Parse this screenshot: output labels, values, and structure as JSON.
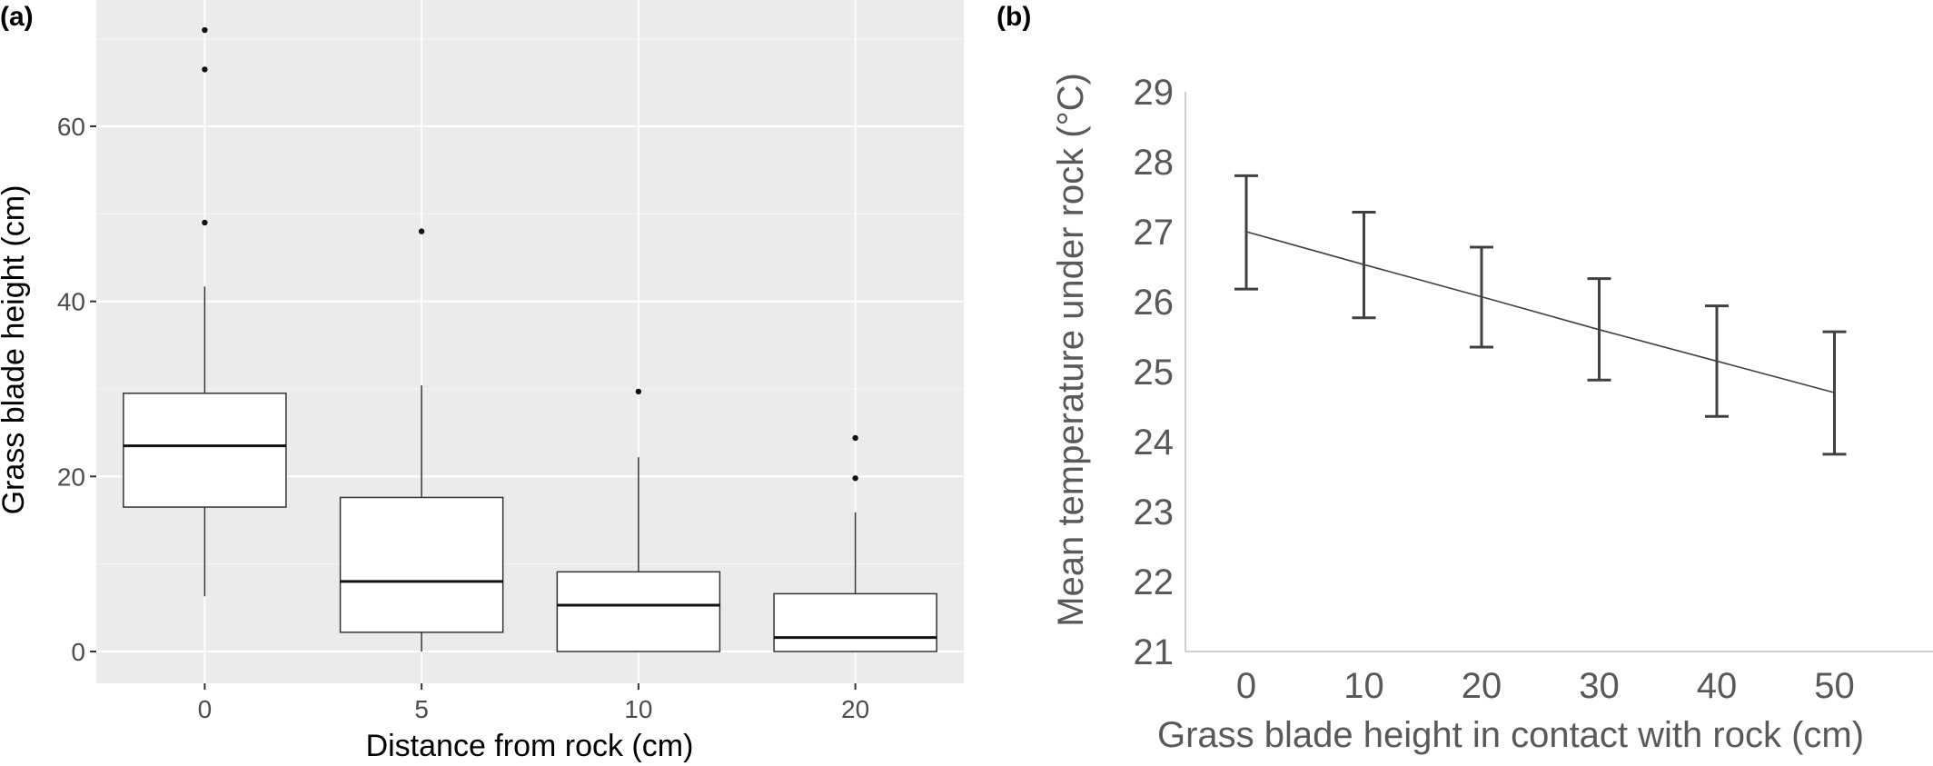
{
  "chart_data": [
    {
      "panel": "(a)",
      "type": "box",
      "xlabel": "Distance from rock (cm)",
      "ylabel": "Grass blade height (cm)",
      "categories": [
        "0",
        "5",
        "10",
        "20"
      ],
      "ylim": [
        -3.5,
        74
      ],
      "yticks": [
        0,
        20,
        40,
        60
      ],
      "grid": true,
      "boxes": [
        {
          "category": "0",
          "whisker_low": 6.3,
          "q1": 16.5,
          "median": 23.5,
          "q3": 29.5,
          "whisker_high": 41.7,
          "outliers": [
            49.0,
            66.5,
            71.0
          ]
        },
        {
          "category": "5",
          "whisker_low": 0.0,
          "q1": 2.2,
          "median": 8.0,
          "q3": 17.6,
          "whisker_high": 30.4,
          "outliers": [
            48.0
          ]
        },
        {
          "category": "10",
          "whisker_low": 0.0,
          "q1": 0.0,
          "median": 5.3,
          "q3": 9.1,
          "whisker_high": 22.2,
          "outliers": [
            29.7
          ]
        },
        {
          "category": "20",
          "whisker_low": 0.0,
          "q1": 0.0,
          "median": 1.6,
          "q3": 6.6,
          "whisker_high": 15.9,
          "outliers": [
            19.8,
            24.4
          ]
        }
      ]
    },
    {
      "panel": "(b)",
      "type": "line",
      "xlabel": "Grass blade height in contact with rock (cm)",
      "ylabel": "Mean temperature under rock (°C)",
      "x": [
        0,
        10,
        20,
        30,
        40,
        50
      ],
      "ylim": [
        21,
        29
      ],
      "yticks": [
        21,
        22,
        23,
        24,
        25,
        26,
        27,
        28,
        29
      ],
      "grid": false,
      "series": [
        {
          "values": [
            27.0,
            26.53,
            26.07,
            25.6,
            25.15,
            24.7
          ],
          "error_low": [
            26.18,
            25.77,
            25.35,
            24.88,
            24.36,
            23.82
          ],
          "error_high": [
            27.8,
            27.28,
            26.78,
            26.33,
            25.94,
            25.57
          ]
        }
      ]
    }
  ]
}
